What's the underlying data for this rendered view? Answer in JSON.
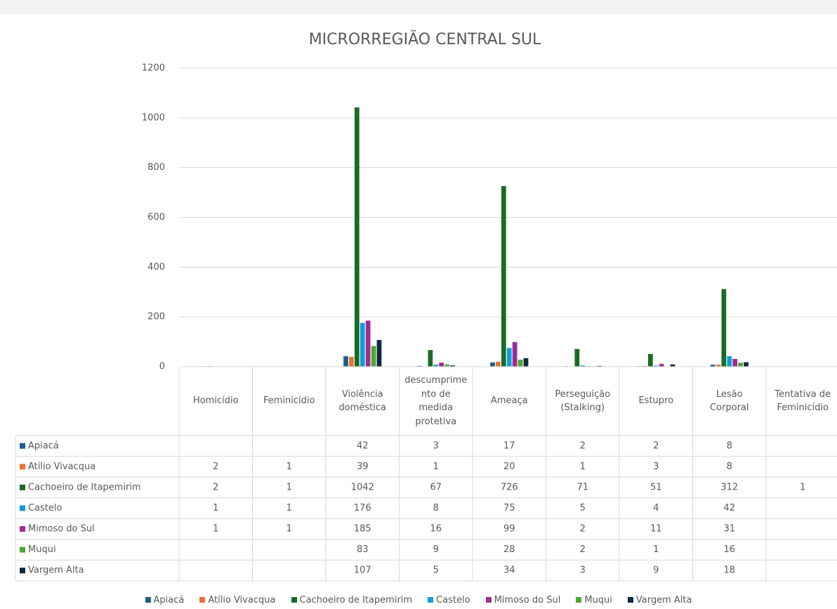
{
  "chart_data": {
    "type": "bar",
    "title": "MICRORREGIÃO CENTRAL SUL",
    "categories": [
      "Homicídio",
      "Feminicídio",
      "Violência doméstica",
      "descumprimento de medida protetiva",
      "Ameaça",
      "Perseguição (Stalking)",
      "Estupro",
      "Lesão Corporal",
      "Tentativa de Feminicídio"
    ],
    "series": [
      {
        "name": "Apiacá",
        "color": "#1f5e8a",
        "values": [
          null,
          null,
          42,
          3,
          17,
          2,
          2,
          8,
          null
        ]
      },
      {
        "name": "Atílio Vivacqua",
        "color": "#e97132",
        "values": [
          2,
          1,
          39,
          1,
          20,
          1,
          3,
          8,
          null
        ]
      },
      {
        "name": "Cachoeiro de Itapemirim",
        "color": "#196b24",
        "values": [
          2,
          1,
          1042,
          67,
          726,
          71,
          51,
          312,
          1
        ]
      },
      {
        "name": "Castelo",
        "color": "#0f9ed5",
        "values": [
          1,
          1,
          176,
          8,
          75,
          5,
          4,
          42,
          null
        ]
      },
      {
        "name": "Mimoso do Sul",
        "color": "#a02b93",
        "values": [
          1,
          1,
          185,
          16,
          99,
          2,
          11,
          31,
          null
        ]
      },
      {
        "name": "Muqui",
        "color": "#4ea72e",
        "values": [
          null,
          null,
          83,
          9,
          28,
          2,
          1,
          16,
          null
        ]
      },
      {
        "name": "Vargem Alta",
        "color": "#0e2841",
        "values": [
          null,
          null,
          107,
          5,
          34,
          3,
          9,
          18,
          null
        ]
      }
    ],
    "ylim": [
      0,
      1200
    ],
    "yticks": [
      0,
      200,
      400,
      600,
      800,
      1000,
      1200
    ],
    "grid": true,
    "legend": "bottom",
    "data_table": true
  }
}
